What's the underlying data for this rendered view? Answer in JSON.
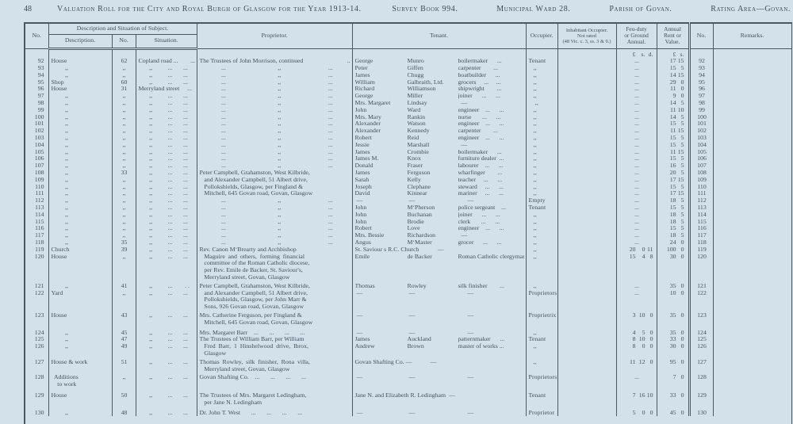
{
  "page": {
    "number": "48",
    "title": "Valuation Roll for the City and Royal Burgh of Glasgow for the Year 1913-14.",
    "survey_book": "Survey Book 994.",
    "municipal_ward": "Municipal Ward 28.",
    "parish": "Parish of Govan.",
    "rating_area": "Rating Area—Govan."
  },
  "colors": {
    "paper": "#d3e2ea",
    "ink": "#41505c",
    "rule": "#4a5863"
  },
  "table": {
    "headers": {
      "no_left": "No.",
      "group": "Description and Situation of Subject.",
      "description": "Description.",
      "no": "No.",
      "situation": "Situation.",
      "proprietor": "Proprietor.",
      "tenant": "Tenant.",
      "occupier": "Occupier.",
      "inhabitant": "Inhabitant Occupier.\nNot rated\n(48 Vic. c. 3, ss. 3 & 9.)",
      "feu": "Feu-duty\nor Ground\nAnnual.",
      "rent": "Annual\nRent or\nValue.",
      "no_right": "No.",
      "remarks": "Remarks."
    },
    "rows": [
      {
        "cur": true,
        "feu": [
          "£",
          "s.",
          "d."
        ],
        "rent": [
          "£",
          "s."
        ]
      },
      {
        "n1": "92",
        "desc": "House",
        "dno": "62",
        "sit": "Copland road ...        ...          .",
        "prop2": [
          "The Trustees of John Morrison, continued",
          ".."
        ],
        "tf": "George",
        "ts": "Munro",
        "to": "boilermaker      ...",
        "occ": "Tenant",
        "feu": "...",
        "rent": [
          "17",
          "15"
        ],
        "n2": "92"
      },
      {
        "n1": "93",
        "desc": "         ,,",
        "dno": ",,",
        "sit": "       ,,          ...       ...       ...",
        "prop3": [
          "...",
          ",,",
          "..."
        ],
        "tf": "Peter",
        "ts": "Giffen",
        "to": "carpenter        ...",
        "occ": "   ,,",
        "feu": "...",
        "rent": [
          "15",
          "5"
        ],
        "n2": "93"
      },
      {
        "n1": "94",
        "desc": "         ,,",
        "dno": ",,",
        "sit": "       ,,          ...       ...       ...",
        "prop3": [
          "...",
          ",,",
          "..."
        ],
        "tf": "James",
        "ts": "Chugg",
        "to": "boatbuilder      ...",
        "occ": "   ,,",
        "feu": "...",
        "rent": [
          "14",
          "15"
        ],
        "n2": "94"
      },
      {
        "n1": "95",
        "desc": "Shop",
        "dno": "60",
        "sit": "       ,,          ...       ...       ...",
        "prop3": [
          "...",
          ",,",
          "..."
        ],
        "tf": "William",
        "ts": "Galbraith, Ltd.",
        "to": "grocers     ...     ...",
        "occ": "   ,,",
        "feu": "...",
        "rent": [
          "29",
          "0"
        ],
        "n2": "95"
      },
      {
        "n1": "96",
        "desc": "House",
        "dno": "31",
        "sit": "Merryland street     ...       ...",
        "prop3": [
          "...",
          ",,",
          "..."
        ],
        "tf": "Richard",
        "ts": "Williamson",
        "to": "shipwright        ...",
        "occ": "   ,,",
        "feu": "...",
        "rent": [
          "11",
          "0"
        ],
        "n2": "96"
      },
      {
        "n1": "97",
        "desc": "         ,,",
        "dno": ",,",
        "sit": "       ,,          ...       ...",
        "prop3": [
          "...",
          ",,",
          "..."
        ],
        "tf": "George",
        "ts": "Miller",
        "to": "joiner      ...      ...",
        "occ": "   ,,",
        "feu": "...",
        "rent": [
          "9",
          "0"
        ],
        "n2": "97"
      },
      {
        "n1": "98",
        "desc": "         ,,",
        "dno": ",,",
        "sit": "       ,,          ...       ...",
        "prop3": [
          "...",
          ",,",
          "..."
        ],
        "tf": "Mrs. Margaret",
        "ts": "Lindsay",
        "to": "  —",
        "occ": "    ,,",
        "feu": "...",
        "rent": [
          "14",
          "5"
        ],
        "n2": "98"
      },
      {
        "n1": "99",
        "desc": "         ,,",
        "dno": ",,",
        "sit": "       ,,          ...       ...",
        "prop3": [
          "...",
          ",,",
          "..."
        ],
        "tf": "John",
        "ts": "Ward",
        "to": "engineer    ...      ...",
        "occ": "   ,,",
        "feu": "...",
        "rent": [
          "11",
          "10"
        ],
        "n2": "99"
      },
      {
        "n1": "100",
        "desc": "         ,,",
        "dno": ",,",
        "sit": "       ,,          ...       ...",
        "prop3": [
          "...",
          ",,",
          "..."
        ],
        "tf": "Mrs. Mary",
        "ts": "Rankin",
        "to": "nurse       ...      ...",
        "occ": "   ,,",
        "feu": "...",
        "rent": [
          "14",
          "5"
        ],
        "n2": "100"
      },
      {
        "n1": "101",
        "desc": "         ,,",
        "dno": ",,",
        "sit": "       ,,          ...       ...",
        "prop3": [
          "...",
          ",,",
          "..."
        ],
        "tf": "Alexander",
        "ts": "Watson",
        "to": "engineer    ...      ...",
        "occ": "   ,,",
        "feu": "...",
        "rent": [
          "15",
          "5"
        ],
        "n2": "101"
      },
      {
        "n1": "102",
        "desc": "         ,,",
        "dno": ",,",
        "sit": "       ,,          ...       ...",
        "prop3": [
          "...",
          ",,",
          "..."
        ],
        "tf": "Alexander",
        "ts": "Kennedy",
        "to": "carpenter        ...",
        "occ": "   ,,",
        "feu": "...",
        "rent": [
          "11",
          "15"
        ],
        "n2": "102"
      },
      {
        "n1": "103",
        "desc": "         ,,",
        "dno": ",,",
        "sit": "       ,,          ...       ...",
        "prop3": [
          "...",
          ",,",
          "..."
        ],
        "tf": "Robert",
        "ts": "Reid",
        "to": "engineer    ...      ...",
        "occ": "   ,,",
        "feu": "...",
        "rent": [
          "15",
          "5"
        ],
        "n2": "103"
      },
      {
        "n1": "104",
        "desc": "         ,,",
        "dno": ",,",
        "sit": "       ,,          ...       ...",
        "prop3": [
          "...",
          ",,",
          "..."
        ],
        "tf": "Jessie",
        "ts": "Marshall",
        "to": "  —",
        "occ": "   ,,",
        "feu": "...",
        "rent": [
          "15",
          "5"
        ],
        "n2": "104"
      },
      {
        "n1": "105",
        "desc": "         ,,",
        "dno": ",,",
        "sit": "       ,,          ...       ...",
        "prop3": [
          "...",
          ",,",
          "..."
        ],
        "tf": "James",
        "ts": "Crombie",
        "to": "boilermaker      ...",
        "occ": "   ,,",
        "feu": "...",
        "rent": [
          "11",
          "15"
        ],
        "n2": "105"
      },
      {
        "n1": "106",
        "desc": "         ,,",
        "dno": ",,",
        "sit": "       ,,          ...       ...",
        "prop3": [
          "...",
          ",,",
          "..."
        ],
        "tf": "James M.",
        "ts": "Knox",
        "to": "furniture dealer  ...",
        "occ": "   ,,",
        "feu": "...",
        "rent": [
          "15",
          "5"
        ],
        "n2": "106"
      },
      {
        "n1": "107",
        "desc": "         ,,",
        "dno": ",,",
        "sit": "       ,,          ...       ...",
        "prop3": [
          "...",
          ",,",
          "..."
        ],
        "tf": "Donald",
        "ts": "Fraser",
        "to": "labourer    ...      ...",
        "occ": "   ,,",
        "feu": "...",
        "rent": [
          "16",
          "5"
        ],
        "n2": "107"
      },
      {
        "n1": "108",
        "desc": "         ,,",
        "dno": "33",
        "sit": "       ,,          ...       ...",
        "prop": "Peter Campbell, Grahamston, West Kilbride,",
        "tf": "James",
        "ts": "Ferguson",
        "to": "wharfinger        ...",
        "occ": "   ,,",
        "feu": "...",
        "rent": [
          "20",
          "5"
        ],
        "n2": "108"
      },
      {
        "n1": "109",
        "desc": "         ,,",
        "dno": ",,",
        "sit": "       ,,          ...       ...",
        "prop": "   and Alexander Campbell, 51 Albert drive,",
        "tf": "Sarah",
        "ts": "Kelly",
        "to": "teacher     ...      ...",
        "occ": "   ,,",
        "feu": "...",
        "rent": [
          "17",
          "15"
        ],
        "n2": "109"
      },
      {
        "n1": "110",
        "desc": "         ,,",
        "dno": ",,",
        "sit": "       ,,          ...       ...",
        "prop": "   Pollokshields, Glasgow, per Fingland &",
        "tf": "Joseph",
        "ts": "Clephane",
        "to": "steward     ...      ...",
        "occ": "   ,,",
        "feu": "...",
        "rent": [
          "15",
          "5"
        ],
        "n2": "110"
      },
      {
        "n1": "111",
        "desc": "         ,,",
        "dno": ",,",
        "sit": "       ,,          ...       ...",
        "prop": "   Mitchell, 645 Govan road, Govan, Glasgow",
        "tf": "David",
        "ts": "Kinnear",
        "to": "mariner     ...      ...",
        "occ": "   ,,",
        "feu": "...",
        "rent": [
          "17",
          "15"
        ],
        "n2": "111"
      },
      {
        "n1": "112",
        "desc": "         ,,",
        "dno": ",,",
        "sit": "       ,,          ...       ...",
        "prop3": [
          "...",
          ",,",
          "..."
        ],
        "tf": " —",
        "ts": " —",
        "to": "      —",
        "occ": "Empty",
        "feu": "...",
        "rent": [
          "18",
          "5"
        ],
        "n2": "112"
      },
      {
        "n1": "113",
        "desc": "         ,,",
        "dno": ",,",
        "sit": "       ,,          ...       ...",
        "prop3": [
          "...",
          ",,",
          "..."
        ],
        "tf": "John",
        "ts": "M‘Pherson",
        "to": "police sergeant    ...",
        "occ": "Tenant",
        "feu": "...",
        "rent": [
          "15",
          "5"
        ],
        "n2": "113"
      },
      {
        "n1": "114",
        "desc": "         ,,",
        "dno": ",,",
        "sit": "       ,,          ...       ...",
        "prop3": [
          "...",
          ",,",
          "..."
        ],
        "tf": "John",
        "ts": "Buchanan",
        "to": "joiner      ...      ...",
        "occ": "   ,,",
        "feu": "...",
        "rent": [
          "18",
          "5"
        ],
        "n2": "114"
      },
      {
        "n1": "115",
        "desc": "         ,,",
        "dno": ",,",
        "sit": "       ,,          ...       ...",
        "prop3": [
          "...",
          ",,",
          "..."
        ],
        "tf": "John",
        "ts": "Brodie",
        "to": "clerk       ...      ...",
        "occ": "   ,,",
        "feu": "...",
        "rent": [
          "18",
          "5"
        ],
        "n2": "115"
      },
      {
        "n1": "116",
        "desc": "         ,,",
        "dno": ",,",
        "sit": "       ,,          ...       ...",
        "prop3": [
          "...",
          ",,",
          "..."
        ],
        "tf": "Robert",
        "ts": "Love",
        "to": "engineer    ...      ...",
        "occ": "   ,,",
        "feu": "...",
        "rent": [
          "15",
          "5"
        ],
        "n2": "116"
      },
      {
        "n1": "117",
        "desc": "         ,,",
        "dno": ",,",
        "sit": "       ,,          ...       ...",
        "prop3": [
          "...",
          ",,",
          "..."
        ],
        "tf": "Mrs. Bessie",
        "ts": "Richardson",
        "to": "  —",
        "occ": "   ,,",
        "feu": "...",
        "rent": [
          "18",
          "5"
        ],
        "n2": "117"
      },
      {
        "n1": "118",
        "desc": "         ,,",
        "dno": "35",
        "sit": "       ,,          ...       ...",
        "prop3": [
          "...",
          ",,",
          "..."
        ],
        "tf": "Angus",
        "ts": "M‘Master",
        "to": "grocer      ...      ...",
        "occ": "   ,,",
        "feu": "...",
        "rent": [
          "24",
          "0"
        ],
        "n2": "118"
      },
      {
        "n1": "119",
        "desc": "Church",
        "dno": "39",
        "sit": "       ,,          ...       ...",
        "prop": "Rev. Canon M‘Brearty and Archbishop",
        "ten": "St. Saviour s R.C. Church            —",
        "occ": "   ,,",
        "feu": [
          "20",
          "0",
          "11"
        ],
        "rent": [
          "100",
          "0"
        ],
        "n2": "119"
      },
      {
        "n1": "120",
        "desc": "House",
        "dno": ",,",
        "sit": "       ,,          ...       ...",
        "prop": "   Maguire  and  others,  forming  financial",
        "tf": "Emile",
        "ts": "de Backer",
        "to": "Roman Catholic clergyman",
        "occ": "   ,,",
        "feu": [
          "15",
          "4",
          "8"
        ],
        "rent": [
          "30",
          "0"
        ],
        "n2": "120"
      },
      {
        "cont": true,
        "prop": "   committee of the Roman Catholic diocese,"
      },
      {
        "cont": true,
        "prop": "   per Rev. Emile de Backer, St. Saviour's,"
      },
      {
        "cont": true,
        "prop": "   Merryland street, Govan, Glasgow"
      },
      {
        "n1": "121",
        "desc": "         ,,",
        "dno": "41",
        "sit": "       ,,          ...        . .",
        "prop": "Peter Campbell, Grahamston, West Kilbride,",
        "tf": "Thomas",
        "ts": "Rowley",
        "to": "silk finisher        ...",
        "occ": "   ,,",
        "feu": "...",
        "rent": [
          "35",
          "0"
        ],
        "n2": "121",
        "gap": 2
      },
      {
        "n1": "122",
        "desc": "Yard",
        "dno": ",,",
        "sit": "       ,,          ...       ...",
        "prop": "   and Alexander Campbell, 51 Albert drive,",
        "tf": " —",
        "ts": " —",
        "to": "      —",
        "occ": "Proprietors",
        "feu": "...",
        "rent": [
          "10",
          "0"
        ],
        "n2": "122"
      },
      {
        "cont": true,
        "prop": "   Pollokshields, Glasgow, per John Marr &"
      },
      {
        "cont": true,
        "prop": "   Sons, 926 Govan road, Govan, Glasgow"
      },
      {
        "n1": "123",
        "desc": "House",
        "dno": "43",
        "sit": "       ,,          ...       ...",
        "prop": "Mrs. Catherine Ferguson, per Fingland &",
        "tf": " —",
        "ts": " —",
        "to": "      —",
        "occ": "Proprietrix",
        "feu": [
          "3",
          "10",
          "0"
        ],
        "rent": [
          "35",
          "0"
        ],
        "n2": "123",
        "gap": 2
      },
      {
        "cont": true,
        "prop": "   Mitchell, 645 Govan road, Govan, Glasgow"
      },
      {
        "n1": "124",
        "desc": "         ,,",
        "dno": "45",
        "sit": "       ,,          ...       ...",
        "prop": "Mrs. Margaret Barr    ...       ...       ...       ...",
        "tf": " —",
        "ts": " —",
        "to": "      —",
        "occ": "   ,,",
        "feu": [
          "4",
          "5",
          "0"
        ],
        "rent": [
          "35",
          "0"
        ],
        "n2": "124",
        "gap": 4
      },
      {
        "n1": "125",
        "desc": "         ,,",
        "dno": "47",
        "sit": "       ,,          ...       ...",
        "prop": "The Trustees of William Barr, per William",
        "tf": "James",
        "ts": "Auckland",
        "to": "patternmaker      ...",
        "occ": "Tenant",
        "feu": [
          "8",
          "10",
          "0"
        ],
        "rent": [
          "33",
          "0"
        ],
        "n2": "125"
      },
      {
        "n1": "126",
        "desc": "         ,,",
        "dno": "49",
        "sit": "       ,,          ...       ...",
        "prop": "   Fred  Barr,  1  Hinshelwood  drive,  Ibrox,",
        "tf": "Andrew",
        "ts": "Brown",
        "to": "master of works ...",
        "occ": "   ,,",
        "feu": [
          "8",
          "0",
          "0"
        ],
        "rent": [
          "30",
          "0"
        ],
        "n2": "126"
      },
      {
        "cont": true,
        "prop": "   Glasgow"
      },
      {
        "n1": "127",
        "desc": "House & work",
        "dno": "51",
        "sit": "       ,,          ...       ...",
        "prop": "Thomas  Rowley,  silk  finisher,  Rona  villa,",
        "ten": "Govan Shafting Co. —            —",
        "occ": "   ,,",
        "feu": [
          "11",
          "12",
          "0"
        ],
        "rent": [
          "95",
          "0"
        ],
        "n2": "127",
        "gap": 2
      },
      {
        "cont": true,
        "prop": "   Merryland street, Govan, Glasgow"
      },
      {
        "n1": "128",
        "desc": "  Additions",
        "dno": ",,",
        "sit": "       ,,          ...       ...",
        "prop": "Govan Shafting Co.    ...       ...       ...       ...",
        "tf": " —",
        "ts": " —",
        "to": "      —",
        "occ": "Proprietors",
        "feu": "...",
        "rent": [
          "7",
          "0"
        ],
        "n2": "128",
        "gap": 2
      },
      {
        "cont": true,
        "desc": "    to work"
      },
      {
        "n1": "129",
        "desc": "House",
        "dno": "50",
        "sit": "       ,,          ...       ...",
        "prop": "The Trustees of Mrs. Margaret Ledingham,",
        "ten": "Jane N. and Elizabeth R. Ledingham  —",
        "occ": "Tenant",
        "feu": [
          "7",
          "16",
          "10"
        ],
        "rent": [
          "33",
          "0"
        ],
        "n2": "129",
        "gap": 5
      },
      {
        "cont": true,
        "prop": "   per Jane N. Ledingham"
      },
      {
        "n1": "130",
        "desc": "         ,,",
        "dno": "48",
        "sit": "       ,,          ...       ...",
        "prop": "Dr. John T. West       ...       ...       ...       ...",
        "tf": " —",
        "ts": " —",
        "to": "      —",
        "occ": "Proprietor",
        "feu": [
          "5",
          "0",
          "0"
        ],
        "rent": [
          "45",
          "0"
        ],
        "n2": "130",
        "gap": 4
      },
      {
        "spacer": true
      }
    ]
  }
}
